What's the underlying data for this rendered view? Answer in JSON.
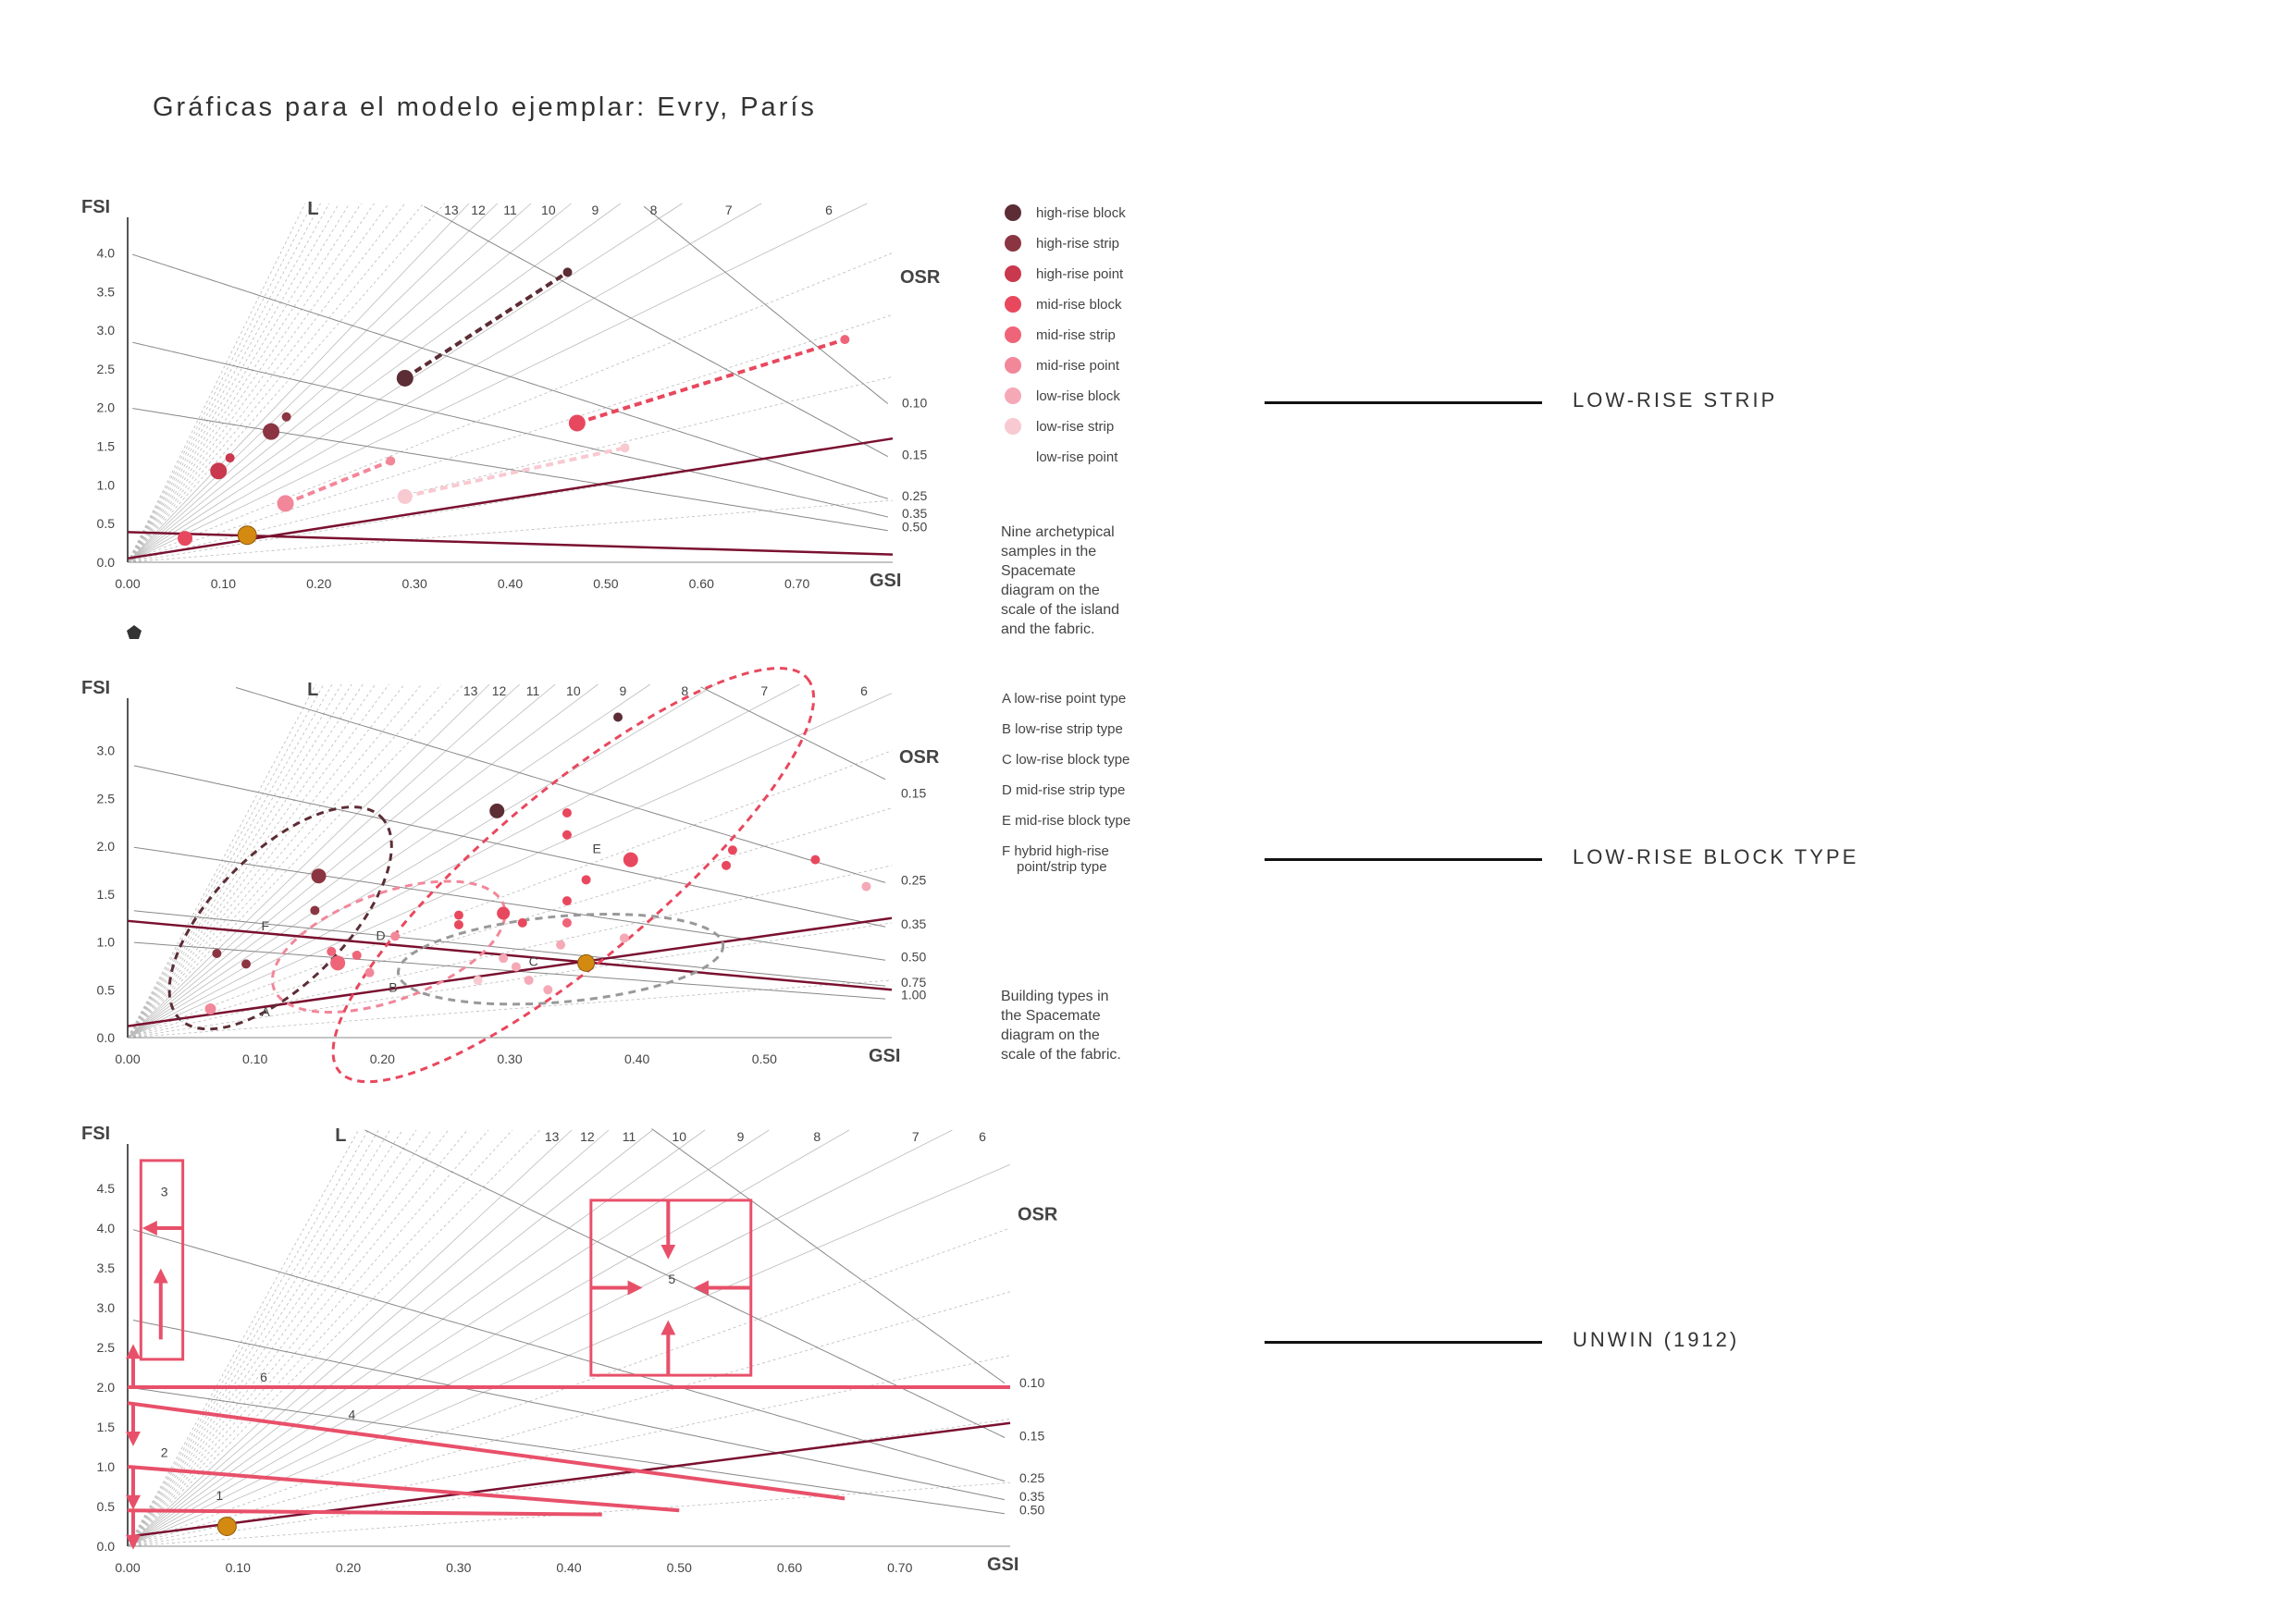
{
  "page": {
    "title": "Gráficas para el modelo ejemplar: Evry, París"
  },
  "colors": {
    "red_line": "#7a1030",
    "orange": "#d48a10",
    "pink": "#e8506a",
    "grid": "#bbbbbb",
    "sr_dark": "#5a3038",
    "sr_mid": "#8a3845"
  },
  "callouts": [
    {
      "text": "LOW-RISE STRIP"
    },
    {
      "text": "LOW-RISE BLOCK TYPE"
    },
    {
      "text": "UNWIN (1912)"
    }
  ],
  "chart_data": [
    {
      "type": "scatter",
      "xlabel": "GSI",
      "ylabel": "FSI",
      "xlim": [
        0,
        0.8
      ],
      "ylim": [
        0,
        4.4
      ],
      "x_ticks": [
        "0.00",
        "0.10",
        "0.20",
        "0.30",
        "0.40",
        "0.50",
        "0.60",
        "0.70"
      ],
      "y_ticks": [
        "0.0",
        "0.5",
        "1.0",
        "1.5",
        "2.0",
        "2.5",
        "3.0",
        "3.5",
        "4.0"
      ],
      "layer_label": "L",
      "layer_labels": [
        "13",
        "12",
        "11",
        "10",
        "9",
        "8",
        "7",
        "6"
      ],
      "osr_label": "OSR",
      "osr_values": [
        "0.10",
        "0.15",
        "0.25",
        "0.35",
        "0.50"
      ],
      "legend": [
        {
          "name": "high-rise block",
          "color": "#5c2d35"
        },
        {
          "name": "high-rise strip",
          "color": "#8c3542"
        },
        {
          "name": "high-rise point",
          "color": "#c9384c"
        },
        {
          "name": "mid-rise block",
          "color": "#e8485e"
        },
        {
          "name": "mid-rise strip",
          "color": "#ef6478"
        },
        {
          "name": "mid-rise point",
          "color": "#f2879a"
        },
        {
          "name": "low-rise block",
          "color": "#f5a9b6"
        },
        {
          "name": "low-rise strip",
          "color": "#f8c9d1"
        },
        {
          "name": "low-rise point",
          "color": "#ffffff"
        }
      ],
      "note_lines": [
        "Nine archetypical",
        "samples in the",
        "Spacemate",
        "diagram on the",
        "scale of the island",
        "and the fabric."
      ],
      "pairs": [
        {
          "from": [
            0.29,
            2.38
          ],
          "to": [
            0.46,
            3.75
          ],
          "color": "#5c2d35"
        },
        {
          "from": [
            0.47,
            1.8
          ],
          "to": [
            0.75,
            2.88
          ],
          "color": "#e8485e"
        },
        {
          "from": [
            0.165,
            0.76
          ],
          "to": [
            0.275,
            1.31
          ],
          "color": "#f2879a"
        },
        {
          "from": [
            0.29,
            0.85
          ],
          "to": [
            0.52,
            1.48
          ],
          "color": "#f8c9d1"
        }
      ],
      "points": [
        {
          "x": 0.29,
          "y": 2.38,
          "r": 9,
          "color": "#5c2d35"
        },
        {
          "x": 0.46,
          "y": 3.75,
          "r": 5,
          "color": "#5c2d35"
        },
        {
          "x": 0.15,
          "y": 1.69,
          "r": 9,
          "color": "#8c3542"
        },
        {
          "x": 0.166,
          "y": 1.88,
          "r": 5,
          "color": "#8c3542"
        },
        {
          "x": 0.095,
          "y": 1.18,
          "r": 9,
          "color": "#c9384c"
        },
        {
          "x": 0.107,
          "y": 1.35,
          "r": 5,
          "color": "#c9384c"
        },
        {
          "x": 0.47,
          "y": 1.8,
          "r": 9,
          "color": "#e8485e"
        },
        {
          "x": 0.75,
          "y": 2.88,
          "r": 5,
          "color": "#ef6478"
        },
        {
          "x": 0.165,
          "y": 0.76,
          "r": 9,
          "color": "#f2879a"
        },
        {
          "x": 0.275,
          "y": 1.31,
          "r": 5,
          "color": "#f2879a"
        },
        {
          "x": 0.29,
          "y": 0.85,
          "r": 8,
          "color": "#f8c9d1"
        },
        {
          "x": 0.52,
          "y": 1.48,
          "r": 5,
          "color": "#f8c9d1"
        },
        {
          "x": 0.06,
          "y": 0.31,
          "r": 8,
          "color": "#e8485e"
        },
        {
          "x": 0.125,
          "y": 0.35,
          "r": 10,
          "color": "#d48a10"
        }
      ],
      "red_lines": [
        {
          "from": [
            0.0,
            0.05
          ],
          "to": [
            0.8,
            1.6
          ]
        },
        {
          "from": [
            0.0,
            0.39
          ],
          "to": [
            0.8,
            0.1
          ]
        }
      ],
      "osr_lines": [
        0.1,
        0.15,
        0.25,
        0.35,
        0.5
      ]
    },
    {
      "type": "scatter",
      "xlabel": "GSI",
      "ylabel": "FSI",
      "xlim": [
        0,
        0.6
      ],
      "ylim": [
        0,
        3.5
      ],
      "x_ticks": [
        "0.00",
        "0.10",
        "0.20",
        "0.30",
        "0.40",
        "0.50"
      ],
      "y_ticks": [
        "0.0",
        "0.5",
        "1.0",
        "1.5",
        "2.0",
        "2.5",
        "3.0"
      ],
      "layer_label": "L",
      "layer_labels": [
        "13",
        "12",
        "11",
        "10",
        "9",
        "8",
        "7",
        "6"
      ],
      "osr_label": "OSR",
      "osr_values": [
        "0.15",
        "0.25",
        "0.35",
        "0.50",
        "0.75",
        "1.00"
      ],
      "legend": [
        {
          "name": "A  low-rise point type"
        },
        {
          "name": "B  low-rise strip type"
        },
        {
          "name": "C  low-rise block type"
        },
        {
          "name": "D  mid-rise strip type"
        },
        {
          "name": "E  mid-rise block type"
        },
        {
          "name": "F  hybrid high-rise",
          "line2": "point/strip type"
        }
      ],
      "note_lines": [
        "Building types in",
        "the Spacemate",
        "diagram on the",
        "scale of the fabric."
      ],
      "cluster_labels": [
        {
          "text": "A",
          "x": 0.105,
          "y": 0.22
        },
        {
          "text": "B",
          "x": 0.205,
          "y": 0.48
        },
        {
          "text": "C",
          "x": 0.315,
          "y": 0.75
        },
        {
          "text": "D",
          "x": 0.195,
          "y": 1.02
        },
        {
          "text": "E",
          "x": 0.365,
          "y": 1.93
        },
        {
          "text": "F",
          "x": 0.105,
          "y": 1.12
        }
      ],
      "ellipses": [
        {
          "cx": 0.12,
          "cy": 1.25,
          "rx": 0.07,
          "ry": 0.43,
          "rot": -45,
          "color": "#5c2d35"
        },
        {
          "cx": 0.205,
          "cy": 0.95,
          "rx": 0.06,
          "ry": 0.35,
          "rot": -20,
          "color": "#f2879a"
        },
        {
          "cx": 0.34,
          "cy": 0.82,
          "rx": 0.08,
          "ry": 0.28,
          "rot": -5,
          "color": "#999999"
        },
        {
          "cx": 0.35,
          "cy": 1.7,
          "rx": 0.15,
          "ry": 0.55,
          "rot": -40,
          "color": "#e8485e"
        }
      ],
      "points": [
        {
          "x": 0.385,
          "y": 3.35,
          "r": 5,
          "color": "#5c2d35"
        },
        {
          "x": 0.29,
          "y": 2.37,
          "r": 8,
          "color": "#5c2d35"
        },
        {
          "x": 0.15,
          "y": 1.69,
          "r": 8,
          "color": "#8c3542"
        },
        {
          "x": 0.147,
          "y": 1.33,
          "r": 5,
          "color": "#8c3542"
        },
        {
          "x": 0.07,
          "y": 0.88,
          "r": 5,
          "color": "#8c3542"
        },
        {
          "x": 0.093,
          "y": 0.77,
          "r": 5,
          "color": "#8c3542"
        },
        {
          "x": 0.165,
          "y": 0.78,
          "r": 8,
          "color": "#ef6478"
        },
        {
          "x": 0.16,
          "y": 0.9,
          "r": 5,
          "color": "#ef6478"
        },
        {
          "x": 0.18,
          "y": 0.86,
          "r": 5,
          "color": "#ef6478"
        },
        {
          "x": 0.19,
          "y": 0.68,
          "r": 5,
          "color": "#f2879a"
        },
        {
          "x": 0.21,
          "y": 1.06,
          "r": 5,
          "color": "#f2879a"
        },
        {
          "x": 0.26,
          "y": 1.28,
          "r": 5,
          "color": "#e8485e"
        },
        {
          "x": 0.26,
          "y": 1.18,
          "r": 5,
          "color": "#e8485e"
        },
        {
          "x": 0.295,
          "y": 1.3,
          "r": 7,
          "color": "#e8485e"
        },
        {
          "x": 0.31,
          "y": 1.2,
          "r": 5,
          "color": "#e8485e"
        },
        {
          "x": 0.345,
          "y": 2.35,
          "r": 5,
          "color": "#e8485e"
        },
        {
          "x": 0.345,
          "y": 2.12,
          "r": 5,
          "color": "#e8485e"
        },
        {
          "x": 0.395,
          "y": 1.86,
          "r": 8,
          "color": "#e8485e"
        },
        {
          "x": 0.36,
          "y": 1.65,
          "r": 5,
          "color": "#e8485e"
        },
        {
          "x": 0.345,
          "y": 1.43,
          "r": 5,
          "color": "#e8485e"
        },
        {
          "x": 0.345,
          "y": 1.2,
          "r": 5,
          "color": "#ef6478"
        },
        {
          "x": 0.475,
          "y": 1.96,
          "r": 5,
          "color": "#e8485e"
        },
        {
          "x": 0.47,
          "y": 1.8,
          "r": 5,
          "color": "#e8485e"
        },
        {
          "x": 0.54,
          "y": 1.86,
          "r": 5,
          "color": "#e8485e"
        },
        {
          "x": 0.58,
          "y": 1.58,
          "r": 5,
          "color": "#f5a9b6"
        },
        {
          "x": 0.34,
          "y": 0.97,
          "r": 5,
          "color": "#f5a9b6"
        },
        {
          "x": 0.39,
          "y": 1.04,
          "r": 5,
          "color": "#f5a9b6"
        },
        {
          "x": 0.295,
          "y": 0.83,
          "r": 5,
          "color": "#f5a9b6"
        },
        {
          "x": 0.305,
          "y": 0.74,
          "r": 5,
          "color": "#f5a9b6"
        },
        {
          "x": 0.315,
          "y": 0.6,
          "r": 5,
          "color": "#f5a9b6"
        },
        {
          "x": 0.33,
          "y": 0.5,
          "r": 5,
          "color": "#f5a9b6"
        },
        {
          "x": 0.275,
          "y": 0.6,
          "r": 5,
          "color": "#f8c9d1"
        },
        {
          "x": 0.065,
          "y": 0.3,
          "r": 6,
          "color": "#f2879a"
        },
        {
          "x": 0.36,
          "y": 0.78,
          "r": 9,
          "color": "#d48a10"
        }
      ],
      "red_lines": [
        {
          "from": [
            0.0,
            0.12
          ],
          "to": [
            0.6,
            1.25
          ]
        },
        {
          "from": [
            0.0,
            1.22
          ],
          "to": [
            0.6,
            0.5
          ]
        }
      ],
      "osr_lines": [
        0.15,
        0.25,
        0.35,
        0.5,
        0.75,
        1.0
      ]
    },
    {
      "type": "line",
      "xlabel": "GSI",
      "ylabel": "FSI",
      "xlim": [
        0,
        0.8
      ],
      "ylim": [
        0,
        5.0
      ],
      "x_ticks": [
        "0.00",
        "0.10",
        "0.20",
        "0.30",
        "0.40",
        "0.50",
        "0.60",
        "0.70"
      ],
      "y_ticks": [
        "0.0",
        "0.5",
        "1.0",
        "1.5",
        "2.0",
        "2.5",
        "3.0",
        "3.5",
        "4.0",
        "4.5"
      ],
      "layer_label": "L",
      "layer_labels": [
        "13",
        "12",
        "11",
        "10",
        "9",
        "8",
        "7",
        "6"
      ],
      "osr_label": "OSR",
      "osr_values": [
        "0.10",
        "0.15",
        "0.25",
        "0.35",
        "0.50"
      ],
      "region_labels": [
        {
          "text": "3",
          "x": 0.03,
          "y": 4.4
        },
        {
          "text": "5",
          "x": 0.49,
          "y": 3.3
        },
        {
          "text": "6",
          "x": 0.12,
          "y": 2.07
        },
        {
          "text": "4",
          "x": 0.2,
          "y": 1.6
        },
        {
          "text": "2",
          "x": 0.03,
          "y": 1.12
        },
        {
          "text": "1",
          "x": 0.08,
          "y": 0.58
        }
      ],
      "rects": [
        {
          "x0": 0.012,
          "x1": 0.05,
          "y0": 2.35,
          "y1": 4.85
        },
        {
          "x0": 0.42,
          "x1": 0.565,
          "y0": 2.15,
          "y1": 4.35
        }
      ],
      "pink_lines": [
        {
          "from": [
            0.0,
            2.0
          ],
          "to": [
            0.8,
            2.0
          ]
        },
        {
          "from": [
            0.0,
            1.8
          ],
          "to": [
            0.65,
            0.6
          ]
        },
        {
          "from": [
            0.0,
            1.0
          ],
          "to": [
            0.5,
            0.45
          ]
        },
        {
          "from": [
            0.0,
            0.45
          ],
          "to": [
            0.43,
            0.4
          ]
        }
      ],
      "arrows": [
        {
          "from": [
            0.05,
            4.0
          ],
          "to": [
            0.02,
            4.0
          ]
        },
        {
          "from": [
            0.03,
            2.6
          ],
          "to": [
            0.03,
            3.4
          ]
        },
        {
          "from": [
            0.49,
            4.35
          ],
          "to": [
            0.49,
            3.7
          ]
        },
        {
          "from": [
            0.42,
            3.25
          ],
          "to": [
            0.46,
            3.25
          ]
        },
        {
          "from": [
            0.565,
            3.25
          ],
          "to": [
            0.52,
            3.25
          ]
        },
        {
          "from": [
            0.49,
            2.15
          ],
          "to": [
            0.49,
            2.75
          ]
        },
        {
          "from": [
            0.005,
            2.0
          ],
          "to": [
            0.005,
            2.45
          ]
        },
        {
          "from": [
            0.005,
            1.8
          ],
          "to": [
            0.005,
            1.35
          ]
        },
        {
          "from": [
            0.005,
            1.0
          ],
          "to": [
            0.005,
            0.55
          ]
        },
        {
          "from": [
            0.005,
            0.45
          ],
          "to": [
            0.005,
            0.05
          ]
        }
      ],
      "points": [
        {
          "x": 0.09,
          "y": 0.25,
          "r": 10,
          "color": "#d48a10"
        }
      ],
      "red_lines": [
        {
          "from": [
            0.0,
            0.12
          ],
          "to": [
            0.8,
            1.55
          ]
        }
      ],
      "osr_lines": [
        0.1,
        0.15,
        0.25,
        0.35,
        0.5
      ]
    }
  ]
}
